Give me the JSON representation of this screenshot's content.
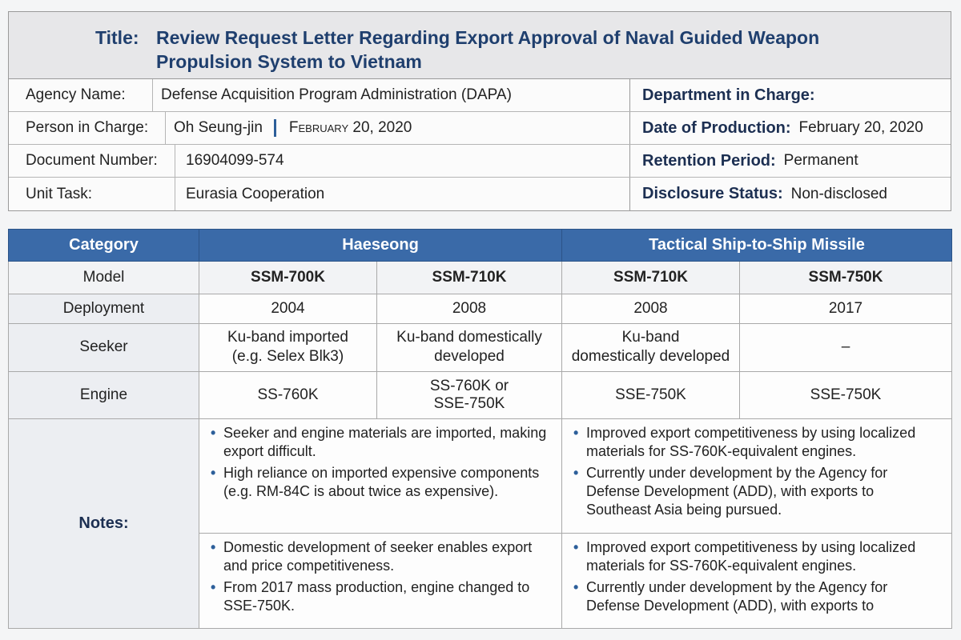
{
  "doc": {
    "title_label": "Title:",
    "title_text": "Review Request Letter Regarding Export Approval of Naval Guided Weapon Propulsion System to Vietnam",
    "agency_label": "Agency Name:",
    "agency_value": "Defense Acquisition Program Administration (DAPA)",
    "department_label": "Department in Charge:",
    "department_value": "",
    "person_label": "Person in Charge:",
    "person_value": "Oh Seung-jin",
    "person_date": "February 20, 2020",
    "production_label": "Date of Production:",
    "production_value": "February 20, 2020",
    "docnum_label": "Document Number:",
    "docnum_value": "16904099-574",
    "retention_label": "Retention Period:",
    "retention_value": "Permanent",
    "unit_label": "Unit Task:",
    "unit_value": "Eurasia Cooperation",
    "disclosure_label": "Disclosure Status:",
    "disclosure_value": "Non-disclosed"
  },
  "table": {
    "headers": {
      "category": "Category",
      "haeseong": "Haeseong",
      "tactical": "Tactical Ship-to-Ship Missile"
    },
    "rows": {
      "model": {
        "label": "Model",
        "cells": [
          "SSM-700K",
          "SSM-710K",
          "SSM-710K",
          "SSM-750K"
        ]
      },
      "deployment": {
        "label": "Deployment",
        "cells": [
          "2004",
          "2008",
          "2008",
          "2017"
        ]
      },
      "seeker": {
        "label": "Seeker",
        "cells": [
          [
            "Ku-band imported",
            "(e.g. Selex Blk3)"
          ],
          [
            "Ku-band domestically",
            "developed"
          ],
          [
            "Ku-band",
            "domestically developed"
          ],
          [
            "–"
          ]
        ]
      },
      "engine": {
        "label": "Engine",
        "cells": [
          [
            "SS-760K"
          ],
          [
            "SS-760K or",
            "SSE-750K"
          ],
          [
            "SSE-750K"
          ],
          [
            "SSE-750K"
          ]
        ]
      }
    },
    "notes": {
      "label": "Notes:",
      "top_left": [
        "Seeker and engine materials are imported, making export difficult.",
        "High reliance on imported expensive components (e.g. RM-84C is about twice as expensive)."
      ],
      "top_right": [
        "Improved export competitiveness by using localized materials for SS-760K-equivalent engines.",
        "Currently under development by the Agency for Defense Development (ADD), with exports to Southeast Asia being pursued."
      ],
      "bottom_left": [
        "Domestic development of seeker enables export and price competitiveness.",
        "From 2017 mass production, engine changed to SSE-750K."
      ],
      "bottom_right": [
        "Improved export competitiveness by using localized materials for SS-760K-equivalent engines.",
        "Currently under development by the Agency for Defense Development (ADD), with exports to"
      ]
    }
  }
}
